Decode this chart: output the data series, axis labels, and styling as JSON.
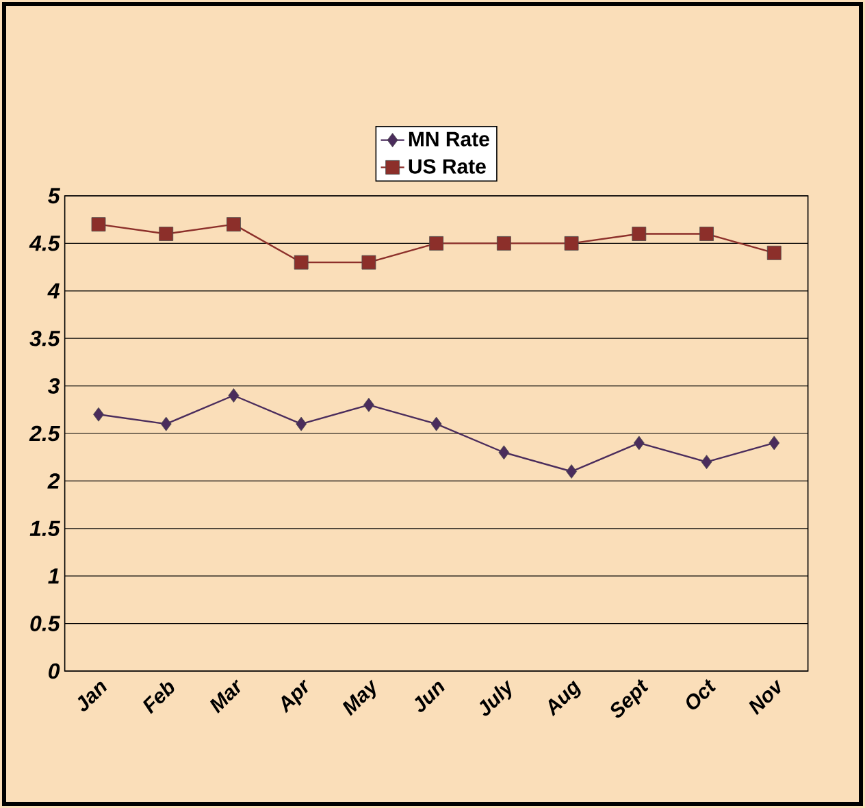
{
  "chart_data": {
    "type": "line",
    "categories": [
      "Jan",
      "Feb",
      "Mar",
      "Apr",
      "May",
      "Jun",
      "July",
      "Aug",
      "Sept",
      "Oct",
      "Nov"
    ],
    "series": [
      {
        "name": "MN Rate",
        "color": "#4a2c5c",
        "marker": "diamond",
        "values": [
          2.7,
          2.6,
          2.9,
          2.6,
          2.8,
          2.6,
          2.3,
          2.1,
          2.4,
          2.2,
          2.4
        ]
      },
      {
        "name": "US Rate",
        "color": "#8c2f2a",
        "marker": "square",
        "values": [
          4.7,
          4.6,
          4.7,
          4.3,
          4.3,
          4.5,
          4.5,
          4.5,
          4.6,
          4.6,
          4.4
        ]
      }
    ],
    "ylim": [
      0,
      5
    ],
    "yticks": [
      0,
      0.5,
      1,
      1.5,
      2,
      2.5,
      3,
      3.5,
      4,
      4.5,
      5
    ],
    "grid": "y",
    "legend": "top",
    "line_style": "solid"
  }
}
